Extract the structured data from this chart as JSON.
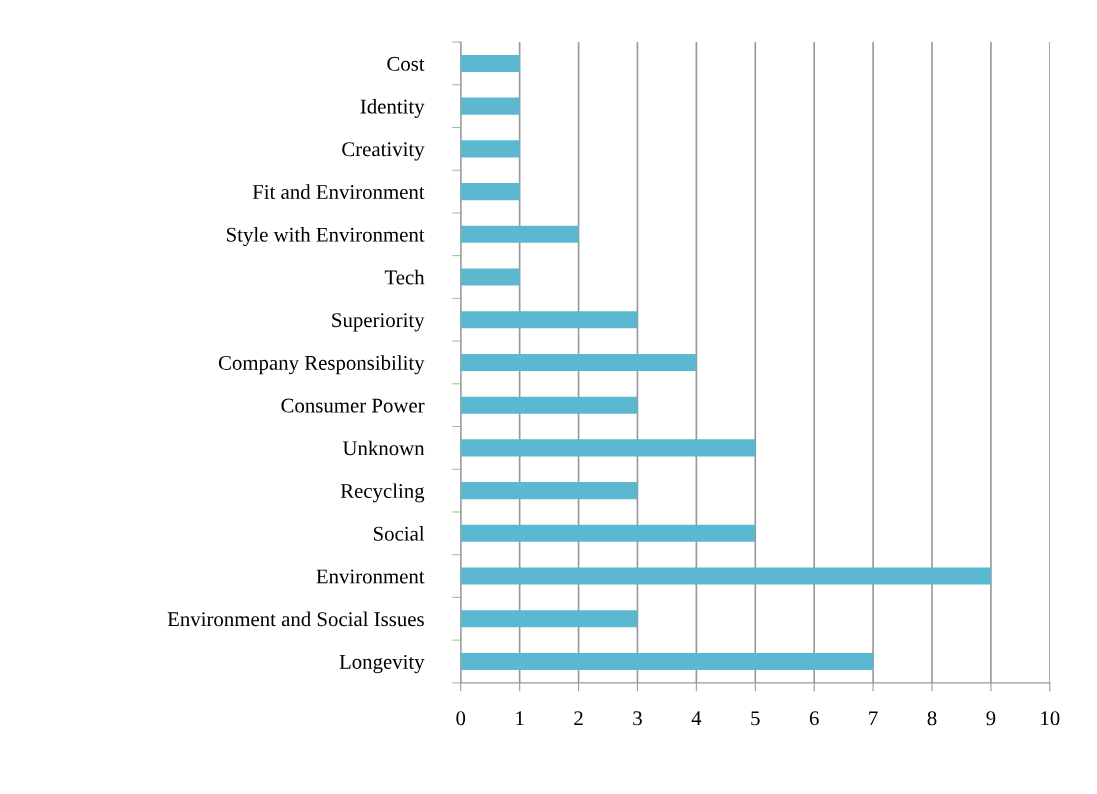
{
  "chart_data": {
    "type": "bar",
    "orientation": "horizontal",
    "categories": [
      "Cost",
      "Identity",
      "Creativity",
      "Fit and Environment",
      "Style with Environment",
      "Tech",
      "Superiority",
      "Company Responsibility",
      "Consumer Power",
      "Unknown",
      "Recycling",
      "Social",
      "Environment",
      "Environment and Social Issues",
      "Longevity"
    ],
    "values": [
      1,
      1,
      1,
      1,
      2,
      1,
      3,
      4,
      3,
      5,
      3,
      5,
      9,
      3,
      7
    ],
    "color": "#5bb8d0",
    "xlim": [
      0,
      10
    ],
    "xticks": [
      0,
      1,
      2,
      3,
      4,
      5,
      6,
      7,
      8,
      9,
      10
    ],
    "grid": "x",
    "legend": false
  }
}
